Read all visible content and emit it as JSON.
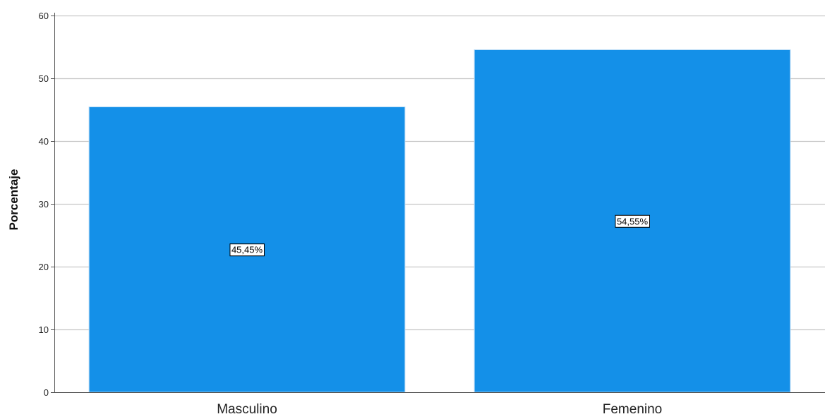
{
  "chart_data": {
    "type": "bar",
    "title": "",
    "xlabel": "",
    "ylabel": "Porcentaje",
    "categories": [
      "Masculino",
      "Femenino"
    ],
    "values": [
      45.45,
      54.55
    ],
    "data_labels": [
      "45,45%",
      "54,55%"
    ],
    "ylim": [
      0,
      60
    ],
    "yticks": [
      0,
      10,
      20,
      30,
      40,
      50,
      60
    ],
    "ytick_labels": [
      "0",
      "10",
      "20",
      "30",
      "40",
      "50",
      "60"
    ],
    "grid": true,
    "legend": "none",
    "bar_color": "#1490e8",
    "bar_edge_color": "#b9dcf6",
    "gridline_color": "#c8c8c8",
    "axis_color": "#555555"
  }
}
